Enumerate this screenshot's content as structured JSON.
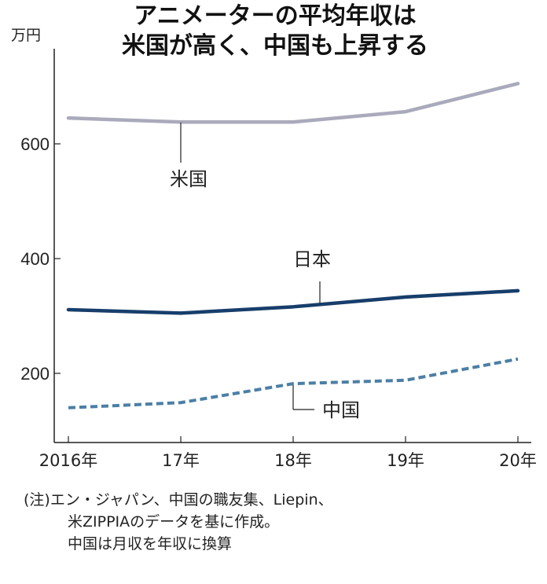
{
  "chart_data": {
    "type": "line",
    "title": "アニメーターの平均年収は\n米国が高く、中国も上昇する",
    "title_lines": [
      "アニメーターの平均年収は",
      "米国が高く、中国も上昇する"
    ],
    "ylabel": "万円",
    "xlabel": "",
    "categories": [
      "2016年",
      "17年",
      "18年",
      "19年",
      "20年"
    ],
    "yticks": [
      200,
      400,
      600
    ],
    "ylim": [
      80,
      760
    ],
    "grid": false,
    "series": [
      {
        "name": "米国",
        "values": [
          645,
          638,
          638,
          656,
          705
        ],
        "color": "#a9aabb",
        "style": "solid"
      },
      {
        "name": "日本",
        "values": [
          311,
          305,
          316,
          333,
          344
        ],
        "color": "#173e6b",
        "style": "solid"
      },
      {
        "name": "中国",
        "values": [
          140,
          149,
          182,
          188,
          225
        ],
        "color": "#4b7fa6",
        "style": "dashed"
      }
    ]
  },
  "note": {
    "lines": [
      "(注)エン・ジャパン、中国の職友集、Liepin、",
      "米ZIPPIAのデータを基に作成。",
      "中国は月収を年収に換算"
    ]
  }
}
